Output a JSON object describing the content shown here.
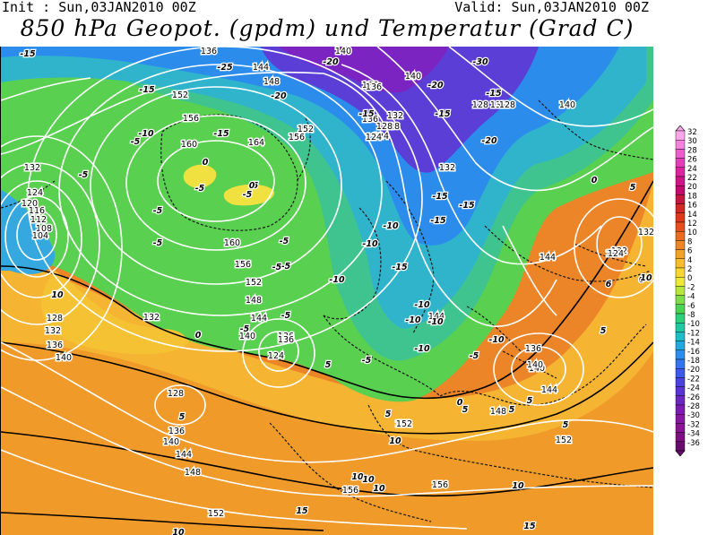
{
  "header": {
    "init": "Init : Sun,03JAN2010 00Z",
    "valid": "Valid: Sun,03JAN2010 00Z",
    "title": "850 hPa Geopot. (gpdm) und Temperatur (Grad C)"
  },
  "legend": {
    "ticks": [
      32,
      30,
      28,
      26,
      24,
      22,
      20,
      18,
      16,
      14,
      12,
      10,
      8,
      6,
      4,
      2,
      0,
      -2,
      -4,
      -6,
      -8,
      -10,
      -12,
      -14,
      -16,
      -18,
      -20,
      -22,
      -24,
      -26,
      -28,
      -30,
      -32,
      -34,
      -36
    ],
    "colors": [
      "#f9a6ea",
      "#f582dc",
      "#ee5ccc",
      "#e53cb8",
      "#d9259f",
      "#cb1686",
      "#bf0c6d",
      "#c2183f",
      "#cf2a24",
      "#dc3a1c",
      "#e5511a",
      "#ec6b1c",
      "#f08524",
      "#f4a12c",
      "#f8bc30",
      "#f8d636",
      "#eee83a",
      "#b8e640",
      "#7ede48",
      "#4ad454",
      "#2ed07a",
      "#22c8a4",
      "#20bcc8",
      "#22a8e0",
      "#2a8ef0",
      "#3574f0",
      "#3e5ae8",
      "#4a44dc",
      "#5a34d0",
      "#6c26c4",
      "#7c1cb6",
      "#8a16a6",
      "#8c1494",
      "#7e1080",
      "#6a0c6c"
    ]
  },
  "geopotential_labels": [
    {
      "text": "136"
    },
    {
      "text": "144"
    },
    {
      "text": "140"
    },
    {
      "text": "136"
    },
    {
      "text": "148"
    },
    {
      "text": "152"
    },
    {
      "text": "140"
    },
    {
      "text": "132"
    },
    {
      "text": "128"
    },
    {
      "text": "156"
    },
    {
      "text": "160"
    },
    {
      "text": "164"
    },
    {
      "text": "156"
    },
    {
      "text": "152"
    },
    {
      "text": "132"
    },
    {
      "text": "124"
    },
    {
      "text": "120"
    },
    {
      "text": "116"
    },
    {
      "text": "112"
    },
    {
      "text": "108"
    },
    {
      "text": "104"
    },
    {
      "text": "160"
    },
    {
      "text": "156"
    },
    {
      "text": "152"
    },
    {
      "text": "148"
    },
    {
      "text": "144"
    },
    {
      "text": "140"
    },
    {
      "text": "136"
    },
    {
      "text": "132"
    },
    {
      "text": "128"
    },
    {
      "text": "132"
    },
    {
      "text": "136"
    },
    {
      "text": "140"
    },
    {
      "text": "128"
    },
    {
      "text": "136"
    },
    {
      "text": "140"
    },
    {
      "text": "144"
    },
    {
      "text": "148"
    },
    {
      "text": "152"
    },
    {
      "text": "136"
    },
    {
      "text": "124"
    },
    {
      "text": "136"
    },
    {
      "text": "132"
    },
    {
      "text": "128"
    },
    {
      "text": "124"
    },
    {
      "text": "144"
    },
    {
      "text": "140"
    },
    {
      "text": "144"
    },
    {
      "text": "136"
    },
    {
      "text": "148"
    },
    {
      "text": "152"
    },
    {
      "text": "152"
    },
    {
      "text": "156"
    },
    {
      "text": "156"
    },
    {
      "text": "128"
    },
    {
      "text": "140"
    },
    {
      "text": "132"
    },
    {
      "text": "124"
    },
    {
      "text": "128"
    },
    {
      "text": "136"
    },
    {
      "text": "132"
    },
    {
      "text": "144"
    },
    {
      "text": "140"
    },
    {
      "text": "132"
    },
    {
      "text": "124"
    },
    {
      "text": "132"
    },
    {
      "text": "152"
    },
    {
      "text": "152"
    }
  ],
  "temperature_labels": [
    {
      "text": "-15"
    },
    {
      "text": "-25"
    },
    {
      "text": "-20"
    },
    {
      "text": "-15"
    },
    {
      "text": "-20"
    },
    {
      "text": "-15"
    },
    {
      "text": "-30"
    },
    {
      "text": "-20"
    },
    {
      "text": "-15"
    },
    {
      "text": "-15"
    },
    {
      "text": "-20"
    },
    {
      "text": "-15"
    },
    {
      "text": "-10"
    },
    {
      "text": "-5"
    },
    {
      "text": "-5"
    },
    {
      "text": "-5"
    },
    {
      "text": "-5"
    },
    {
      "text": "-5"
    },
    {
      "text": "-10"
    },
    {
      "text": "-10"
    },
    {
      "text": "-15"
    },
    {
      "text": "-15"
    },
    {
      "text": "-15"
    },
    {
      "text": "-10"
    },
    {
      "text": "-15"
    },
    {
      "text": "-10"
    },
    {
      "text": "-10"
    },
    {
      "text": "-5"
    },
    {
      "text": "-5"
    },
    {
      "text": "-10"
    },
    {
      "text": "-10"
    },
    {
      "text": "-10"
    },
    {
      "text": "-5"
    },
    {
      "text": "-5"
    },
    {
      "text": "-5"
    },
    {
      "text": "0"
    },
    {
      "text": "0"
    },
    {
      "text": "0"
    },
    {
      "text": "0"
    },
    {
      "text": "0"
    },
    {
      "text": "0"
    },
    {
      "text": "-5"
    },
    {
      "text": "5"
    },
    {
      "text": "5"
    },
    {
      "text": "5"
    },
    {
      "text": "5"
    },
    {
      "text": "5"
    },
    {
      "text": "5"
    },
    {
      "text": "5"
    },
    {
      "text": "5"
    },
    {
      "text": "10"
    },
    {
      "text": "10"
    },
    {
      "text": "10"
    },
    {
      "text": "10"
    },
    {
      "text": "10"
    },
    {
      "text": "10"
    },
    {
      "text": "10"
    },
    {
      "text": "15"
    },
    {
      "text": "15"
    },
    {
      "text": "-5"
    },
    {
      "text": "-5"
    },
    {
      "text": "-5"
    },
    {
      "text": "5"
    },
    {
      "text": "6"
    },
    {
      "text": "10"
    }
  ]
}
